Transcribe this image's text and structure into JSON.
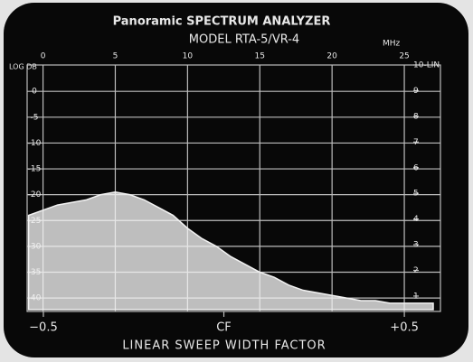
{
  "chart_data": {
    "type": "area",
    "title": "Panoramic SPECTRUM ANALYZER",
    "subtitle": "MODEL RTA-5/VR-4",
    "xlabel": "MHz",
    "x2label": "LINEAR SWEEP WIDTH FACTOR",
    "ylabel": "LOG DB",
    "xlim": [
      -1.1,
      27.5
    ],
    "xticks": [
      0,
      5,
      10,
      15,
      20,
      25
    ],
    "x2lim": [
      -0.545,
      0.6
    ],
    "x2ticks": [
      {
        "value": -0.5,
        "label": "−0.5"
      },
      {
        "value": 0,
        "label": "CF"
      },
      {
        "value": 0.5,
        "label": "+0.5"
      }
    ],
    "ylim": [
      -42.6,
      5.1
    ],
    "yticks": [
      0,
      -5,
      -10,
      -15,
      -20,
      -25,
      -30,
      -35,
      -40
    ],
    "y2lim": [
      0.4,
      10
    ],
    "y2ticks": [
      {
        "value": 10,
        "label": "10-LIN"
      },
      9,
      8,
      7,
      6,
      5,
      4,
      3,
      2,
      1
    ],
    "grid": true,
    "x": [
      -1,
      0,
      1,
      2,
      3,
      4,
      5,
      6,
      7,
      8,
      9,
      10,
      11,
      12,
      13,
      14,
      15,
      16,
      17,
      18,
      19,
      20,
      21,
      22,
      23,
      24,
      25,
      26,
      27
    ],
    "series": [
      {
        "color": "#f2f2f2",
        "values": [
          -24,
          -23,
          -22,
          -21.5,
          -21,
          -20,
          -19.5,
          -20,
          -21,
          -22.5,
          -24,
          -26.5,
          -28.5,
          -30,
          -32,
          -33.5,
          -35,
          -36,
          -37.5,
          -38.5,
          -39,
          -39.5,
          -40,
          -40.5,
          -40.5,
          -41,
          -41,
          -41,
          -41
        ]
      }
    ]
  }
}
